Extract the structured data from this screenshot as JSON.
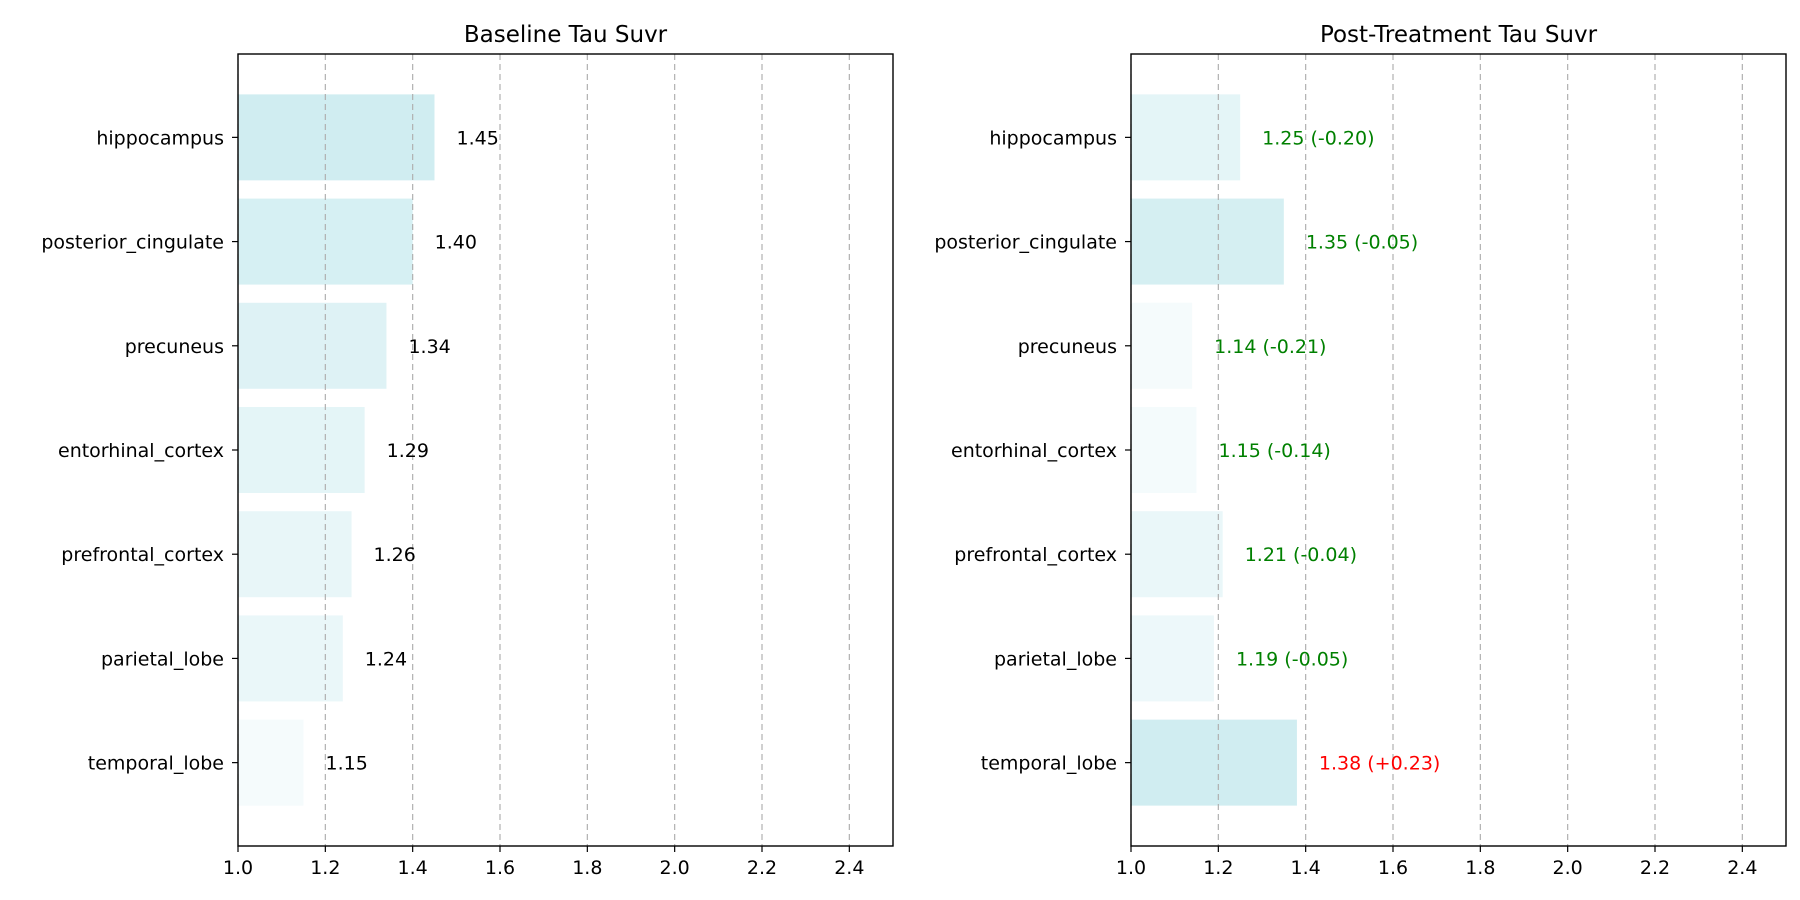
{
  "chart_data": [
    {
      "type": "bar",
      "orientation": "horizontal",
      "title": "Baseline Tau Suvr",
      "xlabel": "",
      "ylabel": "",
      "xlim": [
        1.0,
        2.5
      ],
      "xticks": [
        "1.0",
        "1.2",
        "1.4",
        "1.6",
        "1.8",
        "2.0",
        "2.2",
        "2.4"
      ],
      "grid": "x-dashed",
      "categories": [
        "hippocampus",
        "posterior_cingulate",
        "precuneus",
        "entorhinal_cortex",
        "prefrontal_cortex",
        "parietal_lobe",
        "temporal_lobe"
      ],
      "values": [
        1.45,
        1.4,
        1.34,
        1.29,
        1.26,
        1.24,
        1.15
      ],
      "labels": [
        "1.45",
        "1.40",
        "1.34",
        "1.29",
        "1.26",
        "1.24",
        "1.15"
      ],
      "label_colors": [
        "#000000",
        "#000000",
        "#000000",
        "#000000",
        "#000000",
        "#000000",
        "#000000"
      ]
    },
    {
      "type": "bar",
      "orientation": "horizontal",
      "title": "Post-Treatment Tau Suvr",
      "xlabel": "",
      "ylabel": "",
      "xlim": [
        1.0,
        2.5
      ],
      "xticks": [
        "1.0",
        "1.2",
        "1.4",
        "1.6",
        "1.8",
        "2.0",
        "2.2",
        "2.4"
      ],
      "grid": "x-dashed",
      "categories": [
        "hippocampus",
        "posterior_cingulate",
        "precuneus",
        "entorhinal_cortex",
        "prefrontal_cortex",
        "parietal_lobe",
        "temporal_lobe"
      ],
      "values": [
        1.25,
        1.35,
        1.14,
        1.15,
        1.21,
        1.19,
        1.38
      ],
      "labels": [
        "1.25 (-0.20)",
        "1.35 (-0.05)",
        "1.14 (-0.21)",
        "1.15 (-0.14)",
        "1.21 (-0.04)",
        "1.19 (-0.05)",
        "1.38 (+0.23)"
      ],
      "label_colors": [
        "#008000",
        "#008000",
        "#008000",
        "#008000",
        "#008000",
        "#008000",
        "#ff0000"
      ]
    }
  ],
  "bar_color": "#ade0e6"
}
